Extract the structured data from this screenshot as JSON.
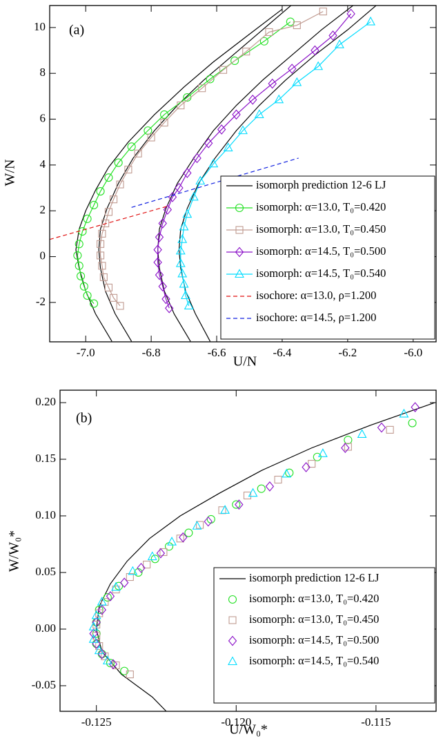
{
  "chart_data": [
    {
      "type": "line",
      "panel_label": "(a)",
      "x_label": "U/N",
      "y_label": "W/N",
      "xlim": [
        -7.11,
        -5.93
      ],
      "ylim": [
        -3.72,
        10.96
      ],
      "xticks": [
        {
          "value": -7.0,
          "label": "-7.0"
        },
        -6.8,
        -6.6,
        -6.4,
        -6.2,
        {
          "value": -6.0,
          "label": "-6.0"
        }
      ],
      "yticks": [
        -2,
        0,
        2,
        4,
        6,
        8,
        10
      ],
      "legend": "lower right",
      "series": [
        {
          "name": "isomorph prediction 12-6 LJ",
          "color": "#000000",
          "linestyle": "solid",
          "marker": "none",
          "x": [
            -6.92,
            -6.97,
            -7.0,
            -7.02,
            -7.03,
            -7.02,
            -7.0,
            -6.97,
            -6.93,
            -6.87,
            -6.79,
            -6.7,
            -6.61,
            -6.51,
            -6.4,
            null,
            -6.86,
            -6.91,
            -6.94,
            -6.955,
            -6.96,
            -6.955,
            -6.935,
            -6.9,
            -6.855,
            -6.79,
            -6.72,
            -6.64,
            -6.55,
            -6.46,
            -6.37,
            null,
            -6.68,
            -6.73,
            -6.76,
            -6.775,
            -6.78,
            -6.775,
            -6.755,
            -6.72,
            -6.67,
            -6.61,
            -6.54,
            -6.46,
            -6.37,
            -6.28,
            -6.18,
            null,
            -6.62,
            -6.665,
            -6.695,
            -6.71,
            -6.715,
            -6.71,
            -6.69,
            -6.655,
            -6.605,
            -6.54,
            -6.47,
            -6.39,
            -6.3,
            -6.2,
            -6.11
          ],
          "values": [
            -3.7,
            -2.5,
            -1.5,
            -0.5,
            0.3,
            1.2,
            2.0,
            2.9,
            3.9,
            5.0,
            6.2,
            7.4,
            8.5,
            9.6,
            10.8,
            null,
            -3.7,
            -2.5,
            -1.5,
            -0.5,
            0.3,
            1.2,
            2.1,
            3.2,
            4.3,
            5.5,
            6.6,
            7.7,
            8.8,
            9.9,
            11,
            null,
            -3.7,
            -2.5,
            -1.5,
            -0.5,
            0.3,
            1.2,
            2.1,
            3.2,
            4.3,
            5.5,
            6.6,
            7.7,
            8.8,
            9.9,
            11,
            null,
            -3.7,
            -2.5,
            -1.5,
            -0.5,
            0.3,
            1.2,
            2.1,
            3.2,
            4.3,
            5.5,
            6.6,
            7.7,
            8.8,
            9.9,
            11
          ]
        },
        {
          "name": "isomorph: α=13.0, T₀=0.420",
          "color": "#22e022",
          "linestyle": "solid",
          "marker": "circle",
          "x": [
            -6.975,
            -6.995,
            -7.005,
            -7.015,
            -7.02,
            -7.025,
            -7.02,
            -7.01,
            -6.995,
            -6.975,
            -6.955,
            -6.93,
            -6.9,
            -6.86,
            -6.81,
            -6.76,
            -6.69,
            -6.62,
            -6.545,
            -6.455,
            -6.375
          ],
          "values": [
            -2.05,
            -1.7,
            -1.3,
            -0.85,
            -0.4,
            0.05,
            0.55,
            1.1,
            1.65,
            2.25,
            2.85,
            3.45,
            4.1,
            4.8,
            5.5,
            6.2,
            6.95,
            7.75,
            8.55,
            9.4,
            10.25
          ]
        },
        {
          "name": "isomorph: α=13.0, T₀=0.450",
          "color": "#c09a90",
          "linestyle": "solid",
          "marker": "square",
          "x": [
            -6.895,
            -6.915,
            -6.93,
            -6.945,
            -6.95,
            -6.955,
            -6.955,
            -6.95,
            -6.94,
            -6.93,
            -6.915,
            -6.895,
            -6.87,
            -6.84,
            -6.8,
            -6.76,
            -6.71,
            -6.645,
            -6.58,
            -6.51,
            -6.44,
            -6.355,
            -6.275
          ],
          "values": [
            -2.15,
            -1.8,
            -1.35,
            -0.9,
            -0.4,
            0.05,
            0.55,
            1.0,
            1.45,
            1.95,
            2.5,
            3.15,
            3.8,
            4.5,
            5.2,
            5.85,
            6.6,
            7.35,
            8.15,
            8.95,
            9.8,
            10.1,
            10.7
          ]
        },
        {
          "name": "isomorph: α=14.5, T₀=0.500",
          "color": "#8a10c8",
          "linestyle": "solid",
          "marker": "diamond",
          "x": [
            -6.745,
            -6.755,
            -6.765,
            -6.775,
            -6.78,
            -6.78,
            -6.775,
            -6.765,
            -6.75,
            -6.735,
            -6.715,
            -6.69,
            -6.66,
            -6.625,
            -6.585,
            -6.54,
            -6.49,
            -6.43,
            -6.37,
            -6.3,
            -6.245,
            -6.19
          ],
          "values": [
            -2.25,
            -1.85,
            -1.3,
            -0.8,
            -0.25,
            0.3,
            0.85,
            1.45,
            2.05,
            2.6,
            3.0,
            3.65,
            4.3,
            4.95,
            5.55,
            6.2,
            6.85,
            7.55,
            8.2,
            9.0,
            9.65,
            10.6
          ]
        },
        {
          "name": "isomorph: α=14.5, T₀=0.540",
          "color": "#00dcff",
          "linestyle": "solid",
          "marker": "triangle",
          "x": [
            -6.685,
            -6.695,
            -6.7,
            -6.705,
            -6.71,
            -6.71,
            -6.705,
            -6.7,
            -6.69,
            -6.67,
            -6.65,
            -6.61,
            -6.565,
            -6.52,
            -6.47,
            -6.41,
            -6.355,
            -6.29,
            -6.225,
            -6.13
          ],
          "values": [
            -2.15,
            -1.7,
            -1.2,
            -0.75,
            -0.3,
            0.25,
            0.75,
            1.3,
            1.85,
            2.6,
            3.3,
            4.05,
            4.75,
            5.5,
            6.2,
            6.85,
            7.6,
            8.3,
            9.25,
            10.25
          ]
        },
        {
          "name": "isochore: α=13.0, ρ=1.200",
          "color": "#e01010",
          "linestyle": "dashed",
          "marker": "none",
          "x": [
            -7.11,
            -6.75
          ],
          "values": [
            0.75,
            2.2
          ]
        },
        {
          "name": "isochore: α=14.5, ρ=1.200",
          "color": "#1020e0",
          "linestyle": "dashed",
          "marker": "none",
          "x": [
            -6.86,
            -6.35
          ],
          "values": [
            2.15,
            4.3
          ]
        }
      ]
    },
    {
      "type": "scatter",
      "panel_label": "(b)",
      "x_label": "U/W₀*",
      "y_label": "W/W₀*",
      "xlim": [
        -0.1263,
        -0.11285
      ],
      "ylim": [
        -0.0726,
        0.211
      ],
      "xticks": [
        -0.125,
        {
          "value": -0.12,
          "label": "-0.120"
        },
        -0.115
      ],
      "yticks": [
        -0.05,
        {
          "value": 0,
          "label": "0.00"
        },
        0.05,
        {
          "value": 0.1,
          "label": "0.10"
        },
        0.15,
        {
          "value": 0.2,
          "label": "0.20"
        }
      ],
      "legend": "lower right",
      "series": [
        {
          "name": "isomorph prediction 12-6 LJ",
          "color": "#000000",
          "linestyle": "solid",
          "marker": "none",
          "x": [
            -0.1225,
            -0.123,
            -0.1241,
            -0.1248,
            -0.125,
            -0.1249,
            -0.1245,
            -0.1239,
            -0.1231,
            -0.122,
            -0.1206,
            -0.1191,
            -0.1173,
            -0.1152,
            -0.1129
          ],
          "values": [
            -0.0726,
            -0.06,
            -0.04,
            -0.02,
            0,
            0.02,
            0.04,
            0.06,
            0.08,
            0.1,
            0.12,
            0.14,
            0.16,
            0.18,
            0.2
          ]
        },
        {
          "name": "isomorph: α=13.0, T₀=0.420",
          "color": "#22e022",
          "linestyle": "none",
          "marker": "circle",
          "x": [
            -0.124,
            -0.1245,
            -0.1248,
            -0.125,
            -0.125,
            -0.125,
            -0.1249,
            -0.1246,
            -0.1242,
            -0.1235,
            -0.1229,
            -0.1224,
            -0.1217,
            -0.1209,
            -0.12,
            -0.1191,
            -0.1181,
            -0.1171,
            -0.116,
            -0.1137
          ],
          "values": [
            -0.037,
            -0.03,
            -0.022,
            -0.013,
            -0.004,
            0.006,
            0.017,
            0.028,
            0.038,
            0.05,
            0.062,
            0.073,
            0.085,
            0.097,
            0.11,
            0.124,
            0.138,
            0.152,
            0.167,
            0.182
          ]
        },
        {
          "name": "isomorph: α=13.0, T₀=0.450",
          "color": "#c09a90",
          "linestyle": "none",
          "marker": "square",
          "x": [
            -0.1238,
            -0.1243,
            -0.1247,
            -0.1249,
            -0.125,
            -0.125,
            -0.1249,
            -0.1247,
            -0.1243,
            -0.1238,
            -0.1232,
            -0.1226,
            -0.122,
            -0.1213,
            -0.1205,
            -0.1196,
            -0.1185,
            -0.1173,
            -0.116,
            -0.1145,
            -0.1127
          ],
          "values": [
            -0.04,
            -0.032,
            -0.024,
            -0.015,
            -0.006,
            0.004,
            0.014,
            0.024,
            0.035,
            0.046,
            0.057,
            0.068,
            0.08,
            0.092,
            0.105,
            0.118,
            0.132,
            0.146,
            0.161,
            0.176,
            0.192
          ]
        },
        {
          "name": "isomorph: α=14.5, T₀=0.500",
          "color": "#8a10c8",
          "linestyle": "none",
          "marker": "diamond",
          "x": [
            -0.1244,
            -0.1248,
            -0.125,
            -0.1251,
            -0.125,
            -0.1248,
            -0.1245,
            -0.124,
            -0.1234,
            -0.1227,
            -0.1219,
            -0.121,
            -0.1199,
            -0.1188,
            -0.1175,
            -0.1161,
            -0.1148,
            -0.1136
          ],
          "values": [
            -0.031,
            -0.022,
            -0.013,
            -0.004,
            0.006,
            0.017,
            0.029,
            0.041,
            0.054,
            0.067,
            0.081,
            0.095,
            0.11,
            0.126,
            0.143,
            0.16,
            0.178,
            0.196
          ]
        },
        {
          "name": "isomorph: α=14.5, T₀=0.540",
          "color": "#00dcff",
          "linestyle": "none",
          "marker": "triangle",
          "x": [
            -0.1246,
            -0.1249,
            -0.1251,
            -0.1251,
            -0.125,
            -0.1248,
            -0.1243,
            -0.1237,
            -0.123,
            -0.1223,
            -0.1214,
            -0.1204,
            -0.1194,
            -0.1182,
            -0.1169,
            -0.1155,
            -0.114
          ],
          "values": [
            -0.028,
            -0.019,
            -0.009,
            0.002,
            0.012,
            0.024,
            0.037,
            0.051,
            0.064,
            0.077,
            0.091,
            0.105,
            0.12,
            0.137,
            0.155,
            0.172,
            0.19
          ]
        }
      ]
    }
  ]
}
